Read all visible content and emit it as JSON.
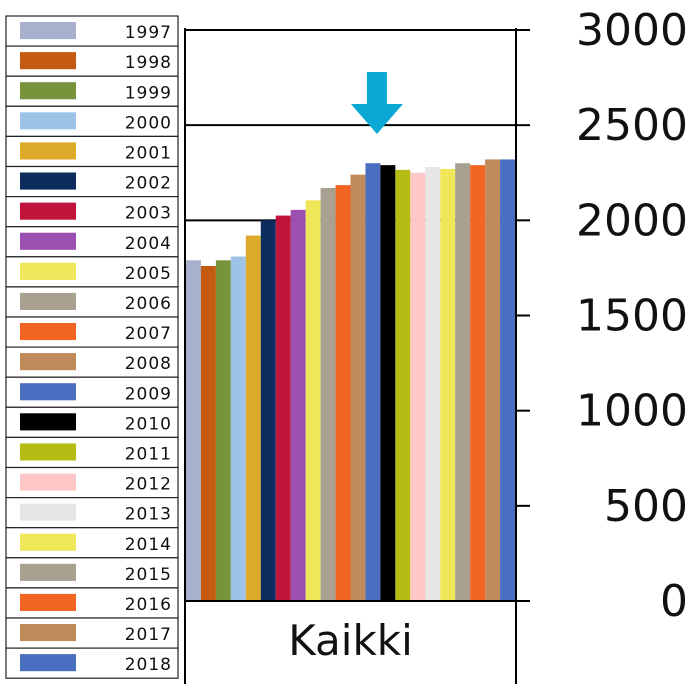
{
  "chart_data": {
    "type": "bar",
    "categories": [
      "Kaikki"
    ],
    "series": [
      {
        "name": "1997",
        "color": "#a7b0cc",
        "values": [
          1790
        ]
      },
      {
        "name": "1998",
        "color": "#c55a11",
        "values": [
          1760
        ]
      },
      {
        "name": "1999",
        "color": "#77933c",
        "values": [
          1790
        ]
      },
      {
        "name": "2000",
        "color": "#9dc3e6",
        "values": [
          1810
        ]
      },
      {
        "name": "2001",
        "color": "#dcaa28",
        "values": [
          1920
        ]
      },
      {
        "name": "2002",
        "color": "#0d2d5e",
        "values": [
          2000
        ]
      },
      {
        "name": "2003",
        "color": "#c0143c",
        "values": [
          2025
        ]
      },
      {
        "name": "2004",
        "color": "#9b4fb0",
        "values": [
          2055
        ]
      },
      {
        "name": "2005",
        "color": "#f0e65a",
        "values": [
          2105
        ]
      },
      {
        "name": "2006",
        "color": "#a8a090",
        "values": [
          2170
        ]
      },
      {
        "name": "2007",
        "color": "#f26522",
        "values": [
          2185
        ]
      },
      {
        "name": "2008",
        "color": "#c08a5a",
        "values": [
          2240
        ]
      },
      {
        "name": "2009",
        "color": "#4a6ec0",
        "values": [
          2300
        ]
      },
      {
        "name": "2010",
        "color": "#000000",
        "values": [
          2290
        ]
      },
      {
        "name": "2011",
        "color": "#b5bd14",
        "values": [
          2265
        ]
      },
      {
        "name": "2012",
        "color": "#ffc8c8",
        "values": [
          2250
        ]
      },
      {
        "name": "2013",
        "color": "#e6e6e6",
        "values": [
          2280
        ]
      },
      {
        "name": "2014",
        "color": "#f0e65a",
        "values": [
          2270
        ]
      },
      {
        "name": "2015",
        "color": "#a8a090",
        "values": [
          2300
        ]
      },
      {
        "name": "2016",
        "color": "#f26522",
        "values": [
          2290
        ]
      },
      {
        "name": "2017",
        "color": "#c08a5a",
        "values": [
          2320
        ]
      },
      {
        "name": "2018",
        "color": "#4a6ec0",
        "values": [
          2320
        ]
      }
    ],
    "ylim": [
      0,
      3000
    ],
    "yticks": [
      "0",
      "500",
      "1000",
      "1500",
      "2000",
      "2500",
      "3000"
    ],
    "ytick_values": [
      0,
      500,
      1000,
      1500,
      2000,
      2500,
      3000
    ],
    "gridlines_at": [
      2000,
      2500,
      3000
    ],
    "y_axis_side": "right",
    "legend_position": "left",
    "annotation": {
      "type": "arrow",
      "color": "#0aa8d2",
      "points_to_series": "2009"
    }
  }
}
